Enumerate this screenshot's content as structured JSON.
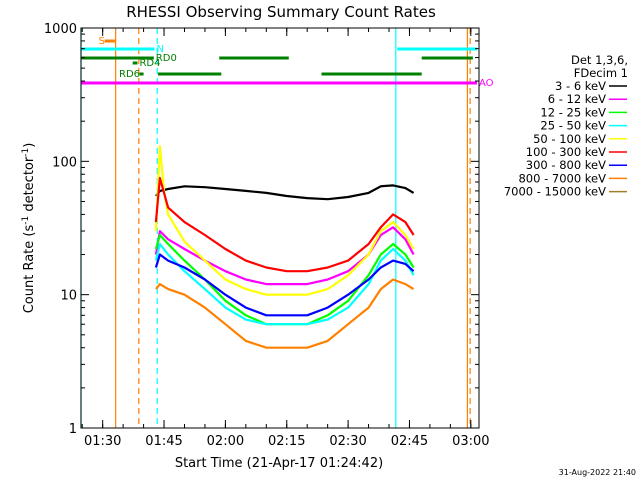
{
  "chart_data": {
    "type": "line",
    "title": "RHESSI Observing Summary Count Rates",
    "xlabel": "Start Time (21-Apr-17 01:24:42)",
    "ylabel_main": "Count Rate (s",
    "ylabel_sup1": "-1",
    "ylabel_mid": " detector",
    "ylabel_sup2": "-1",
    "ylabel_end": ")",
    "y_scale": "log",
    "ylim": [
      1,
      1000
    ],
    "xlim": [
      "01:24:42",
      "03:02:00"
    ],
    "x_ticks": [
      "01:30",
      "01:45",
      "02:00",
      "02:15",
      "02:30",
      "02:45",
      "03:00"
    ],
    "y_ticks": [
      "1",
      "10",
      "100",
      "1000"
    ],
    "footer": "31-Aug-2022 21:40",
    "legend": {
      "header1": "Det 1,3,6,",
      "header2": "FDecim 1",
      "position": "right"
    },
    "series": [
      {
        "name": "3 - 6 keV",
        "color": "#000000",
        "x": [
          "01:43:00",
          "01:44:00",
          "01:46:00",
          "01:50:00",
          "01:55:00",
          "02:00:00",
          "02:05:00",
          "02:10:00",
          "02:15:00",
          "02:20:00",
          "02:25:00",
          "02:30:00",
          "02:35:00",
          "02:38:00",
          "02:41:00",
          "02:44:00",
          "02:46:00"
        ],
        "y": [
          55,
          60,
          62,
          65,
          64,
          62,
          60,
          58,
          55,
          53,
          52,
          54,
          58,
          65,
          66,
          63,
          58
        ]
      },
      {
        "name": "6 - 12 keV",
        "color": "#ff00ff",
        "x": [
          "01:43:00",
          "01:44:00",
          "01:46:00",
          "01:50:00",
          "01:55:00",
          "02:00:00",
          "02:05:00",
          "02:10:00",
          "02:15:00",
          "02:20:00",
          "02:25:00",
          "02:30:00",
          "02:35:00",
          "02:38:00",
          "02:41:00",
          "02:44:00",
          "02:46:00"
        ],
        "y": [
          20,
          30,
          26,
          22,
          18,
          15,
          13,
          12,
          12,
          12,
          13,
          15,
          20,
          28,
          32,
          26,
          20
        ]
      },
      {
        "name": "12 - 25 keV",
        "color": "#00ff00",
        "x": [
          "01:43:00",
          "01:44:00",
          "01:46:00",
          "01:50:00",
          "01:55:00",
          "02:00:00",
          "02:05:00",
          "02:10:00",
          "02:15:00",
          "02:20:00",
          "02:25:00",
          "02:30:00",
          "02:35:00",
          "02:38:00",
          "02:41:00",
          "02:44:00",
          "02:46:00"
        ],
        "y": [
          22,
          28,
          24,
          18,
          13,
          9,
          7,
          6,
          6,
          6,
          7,
          9,
          14,
          20,
          24,
          20,
          16
        ]
      },
      {
        "name": "25 - 50 keV",
        "color": "#00ffff",
        "x": [
          "01:43:00",
          "01:44:00",
          "01:46:00",
          "01:50:00",
          "01:55:00",
          "02:00:00",
          "02:05:00",
          "02:10:00",
          "02:15:00",
          "02:20:00",
          "02:25:00",
          "02:30:00",
          "02:35:00",
          "02:38:00",
          "02:41:00",
          "02:44:00",
          "02:46:00"
        ],
        "y": [
          18,
          24,
          20,
          15,
          11,
          8,
          6.5,
          6,
          6,
          6,
          6.5,
          8,
          12,
          18,
          22,
          18,
          14
        ]
      },
      {
        "name": "50 - 100 keV",
        "color": "#ffff00",
        "x": [
          "01:43:00",
          "01:44:00",
          "01:45:00",
          "01:46:00",
          "01:50:00",
          "01:55:00",
          "02:00:00",
          "02:05:00",
          "02:10:00",
          "02:15:00",
          "02:20:00",
          "02:25:00",
          "02:30:00",
          "02:35:00",
          "02:38:00",
          "02:41:00",
          "02:44:00",
          "02:46:00"
        ],
        "y": [
          30,
          130,
          60,
          40,
          25,
          18,
          13,
          11,
          10,
          10,
          10,
          11,
          14,
          20,
          30,
          35,
          28,
          22
        ]
      },
      {
        "name": "100 - 300 keV",
        "color": "#ff0000",
        "x": [
          "01:43:00",
          "01:44:00",
          "01:46:00",
          "01:50:00",
          "01:55:00",
          "02:00:00",
          "02:05:00",
          "02:10:00",
          "02:15:00",
          "02:20:00",
          "02:25:00",
          "02:30:00",
          "02:35:00",
          "02:38:00",
          "02:41:00",
          "02:44:00",
          "02:46:00"
        ],
        "y": [
          35,
          75,
          45,
          35,
          28,
          22,
          18,
          16,
          15,
          15,
          16,
          18,
          24,
          32,
          40,
          35,
          28
        ]
      },
      {
        "name": "300 - 800 keV",
        "color": "#0000ff",
        "x": [
          "01:43:00",
          "01:44:00",
          "01:46:00",
          "01:50:00",
          "01:55:00",
          "02:00:00",
          "02:05:00",
          "02:10:00",
          "02:15:00",
          "02:20:00",
          "02:25:00",
          "02:30:00",
          "02:35:00",
          "02:38:00",
          "02:41:00",
          "02:44:00",
          "02:46:00"
        ],
        "y": [
          16,
          20,
          18,
          16,
          13,
          10,
          8,
          7,
          7,
          7,
          8,
          10,
          13,
          16,
          18,
          17,
          15
        ]
      },
      {
        "name": "800 - 7000 keV",
        "color": "#ff8000",
        "x": [
          "01:43:00",
          "01:44:00",
          "01:46:00",
          "01:50:00",
          "01:55:00",
          "02:00:00",
          "02:05:00",
          "02:10:00",
          "02:15:00",
          "02:20:00",
          "02:25:00",
          "02:30:00",
          "02:35:00",
          "02:38:00",
          "02:41:00",
          "02:44:00",
          "02:46:00"
        ],
        "y": [
          11,
          12,
          11,
          10,
          8,
          6,
          4.5,
          4,
          4,
          4,
          4.5,
          6,
          8,
          11,
          13,
          12,
          11
        ]
      },
      {
        "name": "7000 - 15000 keV",
        "color": "#a0802a",
        "x": [],
        "y": []
      }
    ],
    "flags": [
      {
        "label": "S",
        "color": "#ff8000",
        "segments": [
          [
            "01:30:30",
            "01:33:00"
          ]
        ]
      },
      {
        "label": "N",
        "color": "#00ffff",
        "segments": [
          [
            "01:24:42",
            "01:42:40"
          ],
          [
            "02:42:00",
            "03:01:30"
          ]
        ]
      },
      {
        "label": "RD0",
        "color": "#008000",
        "segments": [
          [
            "01:24:42",
            "01:42:30"
          ],
          [
            "01:58:30",
            "02:15:30"
          ],
          [
            "02:48:00",
            "03:00:30"
          ]
        ]
      },
      {
        "label": "RD4",
        "color": "#008000",
        "segments": [
          [
            "01:37:20",
            "01:38:30"
          ]
        ]
      },
      {
        "label": "RD6",
        "color": "#008000",
        "segments": [
          [
            "01:39:00",
            "01:40:00"
          ],
          [
            "01:43:30",
            "01:59:00"
          ],
          [
            "02:23:30",
            "02:48:00"
          ]
        ]
      },
      {
        "label": "AO",
        "color": "#ff00ff",
        "segments": [
          [
            "01:24:42",
            "03:01:30"
          ]
        ]
      }
    ],
    "vertical_markers": [
      {
        "x": "01:24:42",
        "color": "#00ffff",
        "style": "solid"
      },
      {
        "x": "01:33:10",
        "color": "#ff8000",
        "style": "solid"
      },
      {
        "x": "01:38:50",
        "color": "#ff8000",
        "style": "dashed"
      },
      {
        "x": "01:43:20",
        "color": "#00ffff",
        "style": "dashed"
      },
      {
        "x": "02:41:40",
        "color": "#00ffff",
        "style": "solid"
      },
      {
        "x": "02:59:10",
        "color": "#ff8000",
        "style": "solid"
      },
      {
        "x": "02:59:50",
        "color": "#ff8000",
        "style": "dashed"
      }
    ]
  }
}
